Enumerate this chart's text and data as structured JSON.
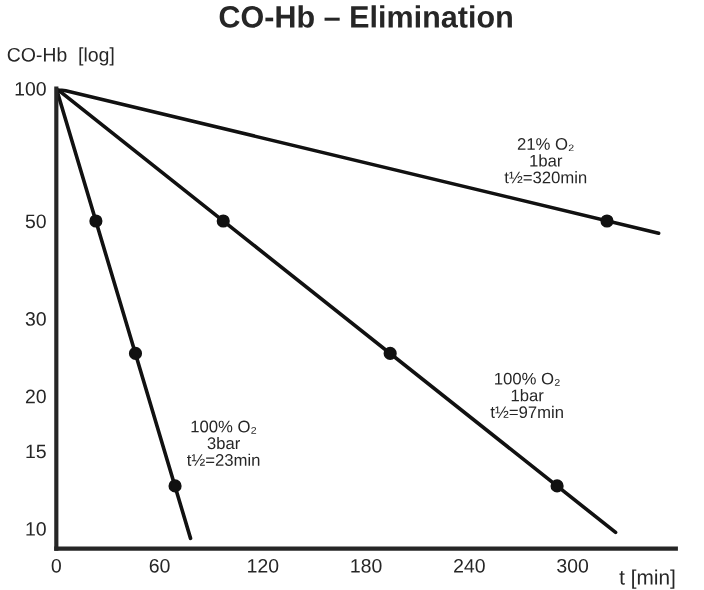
{
  "chart_data": {
    "type": "line",
    "title": "CO-Hb – Elimination",
    "xlabel": "t [min]",
    "ylabel": "CO-Hb  [log]",
    "log": "y",
    "xlim": [
      0,
      360
    ],
    "ylim": [
      9,
      100
    ],
    "xticks": [
      0,
      60,
      120,
      180,
      240,
      300
    ],
    "yticks": [
      10,
      15,
      20,
      30,
      50,
      100
    ],
    "grid": false,
    "legend": false,
    "line_style": "solid",
    "series": [
      {
        "color": "#111111",
        "x": [
          0,
          350
        ],
        "values": [
          100,
          46.9
        ]
      },
      {
        "color": "#111111",
        "x": [
          0,
          325
        ],
        "values": [
          100,
          9.8
        ]
      },
      {
        "color": "#111111",
        "x": [
          0,
          78
        ],
        "values": [
          100,
          9.5
        ]
      },
      {
        "type": "scatter",
        "color": "#111111",
        "x": [
          320,
          97,
          194,
          291,
          23,
          46,
          69
        ],
        "values": [
          50,
          50,
          25,
          12.5,
          50,
          25,
          12.5
        ]
      }
    ],
    "annotations": [
      "21% O₂\n1bar\nt½=320min",
      "100% O₂\n1bar\nt½=97min",
      "100% O₂\n3bar\nt½=23min"
    ]
  }
}
